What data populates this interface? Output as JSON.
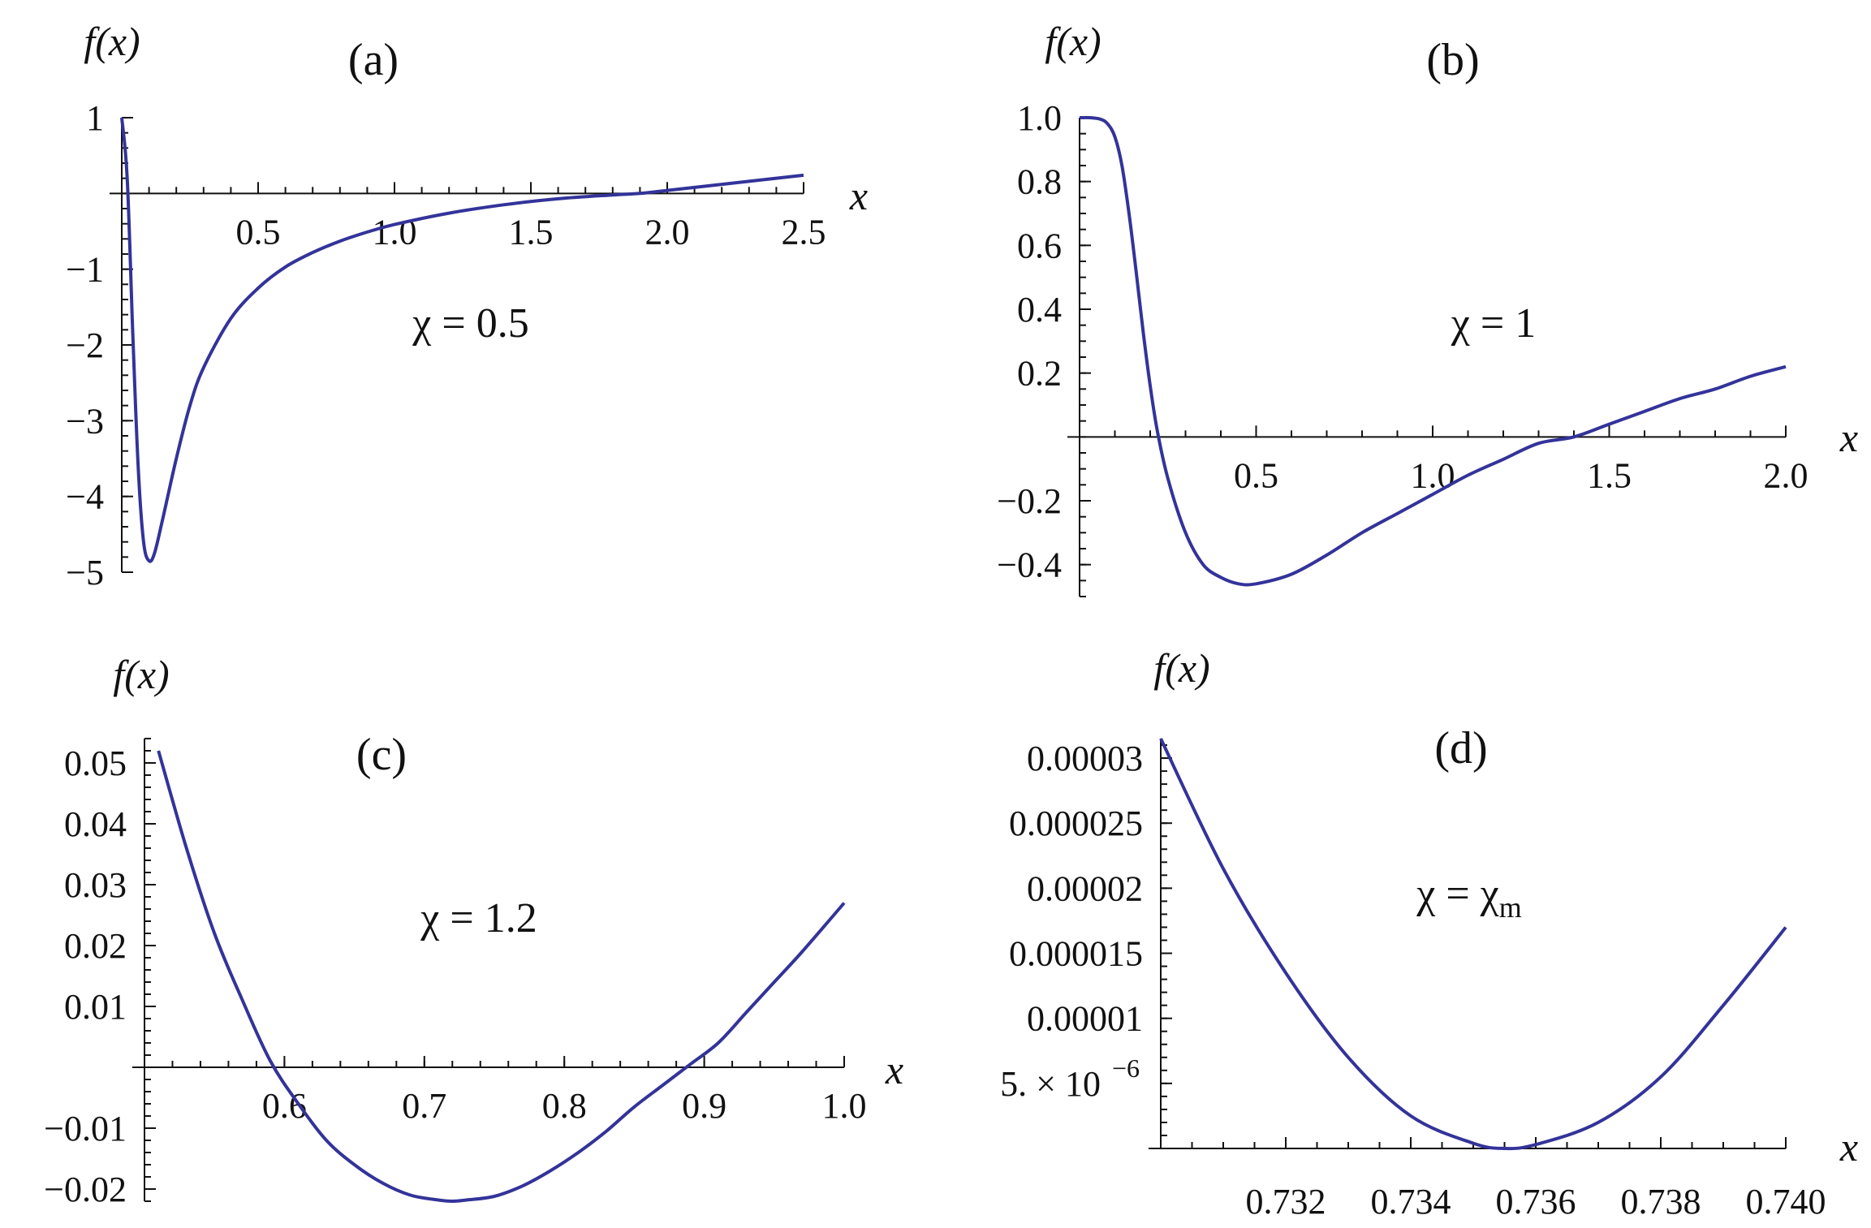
{
  "chart_data": [
    {
      "type": "line",
      "panel_label": "(a)",
      "annotation": "χ = 0.5",
      "xlabel": "x",
      "ylabel": "f(x)",
      "xlim": [
        0,
        2.5
      ],
      "ylim": [
        -5,
        1
      ],
      "xticks": [
        0.5,
        1.0,
        1.5,
        2.0,
        2.5
      ],
      "xtick_labels": [
        "0.5",
        "1.0",
        "1.5",
        "2.0",
        "2.5"
      ],
      "yticks": [
        1,
        -1,
        -2,
        -3,
        -4,
        -5
      ],
      "ytick_labels": [
        "1",
        "−1",
        "−2",
        "−3",
        "−4",
        "−5"
      ],
      "series": [
        {
          "x": [
            0.0,
            0.02,
            0.04,
            0.06,
            0.08,
            0.1,
            0.12,
            0.15,
            0.2,
            0.25,
            0.3,
            0.4,
            0.5,
            0.6,
            0.7,
            0.8,
            0.9,
            1.0,
            1.2,
            1.4,
            1.6,
            1.8,
            1.9,
            2.0,
            2.2,
            2.5
          ],
          "y": [
            1.0,
            0.2,
            -1.8,
            -3.6,
            -4.6,
            -4.85,
            -4.75,
            -4.3,
            -3.5,
            -2.8,
            -2.3,
            -1.65,
            -1.25,
            -0.97,
            -0.78,
            -0.63,
            -0.51,
            -0.41,
            -0.26,
            -0.15,
            -0.07,
            -0.02,
            0.0,
            0.04,
            0.12,
            0.24
          ]
        }
      ]
    },
    {
      "type": "line",
      "panel_label": "(b)",
      "annotation": "χ = 1",
      "xlabel": "x",
      "ylabel": "f(x)",
      "xlim": [
        0,
        2.0
      ],
      "ylim": [
        -0.5,
        1.0
      ],
      "xticks": [
        0.5,
        1.0,
        1.5,
        2.0
      ],
      "xtick_labels": [
        "0.5",
        "1.0",
        "1.5",
        "2.0"
      ],
      "yticks": [
        1.0,
        0.8,
        0.6,
        0.4,
        0.2,
        -0.2,
        -0.4
      ],
      "ytick_labels": [
        "1.0",
        "0.8",
        "0.6",
        "0.4",
        "0.2",
        "−0.2",
        "−0.4"
      ],
      "series": [
        {
          "x": [
            0.0,
            0.03,
            0.06,
            0.08,
            0.1,
            0.12,
            0.14,
            0.16,
            0.18,
            0.2,
            0.22,
            0.25,
            0.3,
            0.35,
            0.4,
            0.45,
            0.5,
            0.6,
            0.7,
            0.8,
            0.9,
            1.0,
            1.1,
            1.2,
            1.3,
            1.4,
            1.5,
            1.6,
            1.7,
            1.8,
            1.9,
            2.0
          ],
          "y": [
            1.0,
            1.0,
            0.995,
            0.98,
            0.94,
            0.85,
            0.7,
            0.52,
            0.33,
            0.16,
            0.02,
            -0.13,
            -0.3,
            -0.4,
            -0.44,
            -0.46,
            -0.46,
            -0.43,
            -0.37,
            -0.3,
            -0.24,
            -0.18,
            -0.12,
            -0.07,
            -0.02,
            0.0,
            0.04,
            0.08,
            0.12,
            0.15,
            0.19,
            0.22
          ]
        }
      ]
    },
    {
      "type": "line",
      "panel_label": "(c)",
      "annotation": "χ = 1.2",
      "xlabel": "x",
      "ylabel": "f(x)",
      "xlim": [
        0.5,
        1.0
      ],
      "ylim": [
        -0.022,
        0.054
      ],
      "xticks": [
        0.6,
        0.7,
        0.8,
        0.9,
        1.0
      ],
      "xtick_labels": [
        "0.6",
        "0.7",
        "0.8",
        "0.9",
        "1.0"
      ],
      "yticks": [
        0.05,
        0.04,
        0.03,
        0.02,
        0.01,
        -0.01,
        -0.02
      ],
      "ytick_labels": [
        "0.05",
        "0.04",
        "0.03",
        "0.02",
        "0.01",
        "−0.01",
        "−0.02"
      ],
      "series": [
        {
          "x": [
            0.51,
            0.53,
            0.55,
            0.57,
            0.59,
            0.61,
            0.63,
            0.65,
            0.67,
            0.69,
            0.71,
            0.72,
            0.73,
            0.75,
            0.77,
            0.79,
            0.81,
            0.83,
            0.85,
            0.87,
            0.89,
            0.91,
            0.93,
            0.95,
            0.97,
            1.0
          ],
          "y": [
            0.052,
            0.036,
            0.022,
            0.011,
            0.001,
            -0.006,
            -0.012,
            -0.016,
            -0.019,
            -0.021,
            -0.0218,
            -0.022,
            -0.0218,
            -0.0212,
            -0.0195,
            -0.017,
            -0.014,
            -0.0105,
            -0.0065,
            -0.003,
            0.0005,
            0.004,
            0.009,
            0.014,
            0.019,
            0.027
          ]
        }
      ]
    },
    {
      "type": "line",
      "panel_label": "(d)",
      "annotation": "χ = χ",
      "annotation_sub": "m",
      "xlabel": "x",
      "ylabel": "f(x)",
      "xlim": [
        0.73,
        0.74
      ],
      "ylim": [
        0,
        3.15e-05
      ],
      "xticks": [
        0.732,
        0.734,
        0.736,
        0.738,
        0.74
      ],
      "xtick_labels": [
        "0.732",
        "0.734",
        "0.736",
        "0.738",
        "0.740"
      ],
      "yticks": [
        3e-05,
        2.5e-05,
        2e-05,
        1.5e-05,
        1e-05,
        5e-06
      ],
      "ytick_labels": [
        "0.00003",
        "0.000025",
        "0.00002",
        "0.000015",
        "0.00001",
        "5. × 10"
      ],
      "ytick_exponent": "−6",
      "series": [
        {
          "x": [
            0.73,
            0.731,
            0.732,
            0.733,
            0.734,
            0.735,
            0.7355,
            0.736,
            0.737,
            0.738,
            0.739,
            0.74
          ],
          "y": [
            3.15e-05,
            2.15e-05,
            1.35e-05,
            7e-06,
            2.5e-06,
            4e-07,
            0.0,
            3e-07,
            2e-06,
            5.5e-06,
            1.1e-05,
            1.7e-05
          ]
        }
      ]
    }
  ]
}
